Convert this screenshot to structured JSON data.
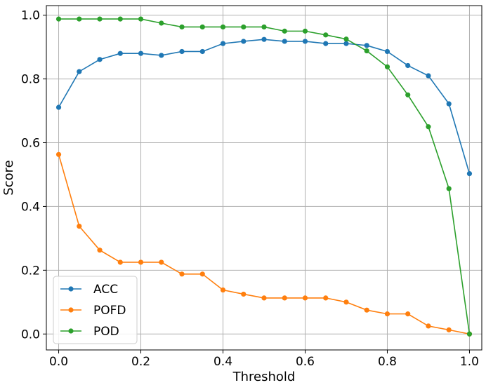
{
  "chart_data": {
    "type": "line",
    "title": "",
    "xlabel": "Threshold",
    "ylabel": "Score",
    "xlim": [
      -0.03,
      1.03
    ],
    "ylim": [
      -0.05,
      1.03
    ],
    "grid": true,
    "legend_position": "bottom-left",
    "xticks": [
      0.0,
      0.2,
      0.4,
      0.6,
      0.8,
      1.0
    ],
    "xtick_labels": [
      "0.0",
      "0.2",
      "0.4",
      "0.6",
      "0.8",
      "1.0"
    ],
    "yticks": [
      0.0,
      0.2,
      0.4,
      0.6,
      0.8,
      1.0
    ],
    "ytick_labels": [
      "0.0",
      "0.2",
      "0.4",
      "0.6",
      "0.8",
      "1.0"
    ],
    "x": [
      0.0,
      0.05,
      0.1,
      0.15,
      0.2,
      0.25,
      0.3,
      0.35,
      0.4,
      0.45,
      0.5,
      0.55,
      0.6,
      0.65,
      0.7,
      0.75,
      0.8,
      0.85,
      0.9,
      0.95,
      1.0
    ],
    "series": [
      {
        "name": "ACC",
        "color": "#1f77b4",
        "values": [
          0.711,
          0.823,
          0.861,
          0.88,
          0.88,
          0.874,
          0.886,
          0.886,
          0.911,
          0.918,
          0.924,
          0.918,
          0.918,
          0.911,
          0.911,
          0.905,
          0.886,
          0.842,
          0.81,
          0.722,
          0.503
        ]
      },
      {
        "name": "POFD",
        "color": "#ff7f0e",
        "values": [
          0.563,
          0.338,
          0.263,
          0.225,
          0.225,
          0.225,
          0.188,
          0.188,
          0.138,
          0.125,
          0.113,
          0.113,
          0.113,
          0.113,
          0.1,
          0.075,
          0.063,
          0.063,
          0.025,
          0.013,
          0.0
        ]
      },
      {
        "name": "POD",
        "color": "#2ca02c",
        "values": [
          0.988,
          0.988,
          0.988,
          0.988,
          0.988,
          0.975,
          0.963,
          0.963,
          0.963,
          0.963,
          0.963,
          0.95,
          0.95,
          0.938,
          0.925,
          0.888,
          0.838,
          0.75,
          0.65,
          0.456,
          0.0
        ]
      }
    ]
  }
}
